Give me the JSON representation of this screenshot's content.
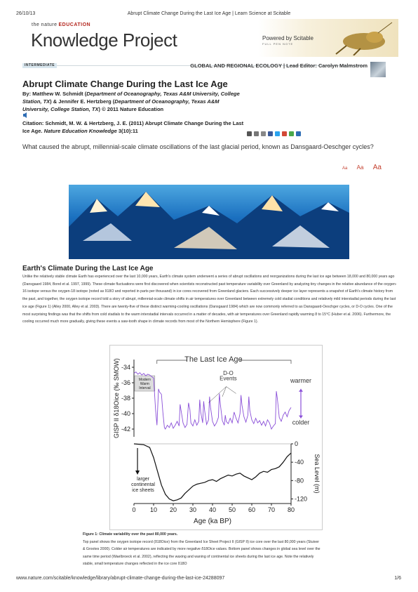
{
  "print_header": {
    "date": "26/10/13",
    "page_title": "Abrupt Climate Change During the Last Ice Age | Learn Science at Scitable"
  },
  "banner": {
    "brand_prefix": "the nature",
    "brand_suffix": "EDUCATION",
    "brand_title": "Knowledge Project",
    "powered_by": "Powered by Scitable",
    "powered_sub": "FULL PEN NOTE"
  },
  "meta": {
    "level": "INTERMEDIATE",
    "subject": "GLOBAL AND REGIONAL ECOLOGY",
    "lead_editor": "Lead Editor: Carolyn Malmstrom"
  },
  "article": {
    "title": "Abrupt Climate Change During the Last Ice Age",
    "authors_prefix": "By: Matthew W. Schmidt (",
    "author1_affil": "Department of Oceanography, Texas A&M University, College Station, TX",
    "authors_mid": ") & Jennifer E. Hertzberg (",
    "author2_affil": "Department of Oceanography, Texas A&M University, College Station, TX",
    "authors_suffix": ") © 2011 Nature Education",
    "citation_text": "Citation: Schmidt, M. W. & Hertzberg, J. E. (2011) Abrupt Climate Change During the Last Ice Age.",
    "citation_journal": "Nature Education Knowledge",
    "citation_vol": "3(10):11",
    "question": "What caused the abrupt, millennial-scale climate oscillations of the last glacial period, known as Dansgaard-Oeschger cycles?",
    "font_small": "Aa",
    "font_medium": "Aa",
    "font_large": "Aa"
  },
  "section": {
    "heading": "Earth's Climate During the Last Ice Age",
    "paragraph": "Unlike the relatively stable climate Earth has experienced over the last 10,000 years, Earth's climate system underwent a series of abrupt oscillations and reorganizations during the last ice age between 18,000 and 80,000 years ago (Dansgaard 1984, Bond et al. 1997, 1999). These climate fluctuations were first discovered when scientists reconstructed past temperature variability over Greenland by analyzing tiny changes in the relative abundance of the oxygen-16 isotope versus the oxygen-18 isotope (noted as δ18O and reported in parts per thousand) in ice cores recovered from Greenland glaciers. Each successively deeper ice layer represents a snapshot of Earth's climate history from the past, and together, the oxygen isotope record told a story of abrupt, millennial-scale climate shifts in air temperatures over Greenland between extremely cold stadial conditions and relatively mild interstadial periods during the last ice age (Figure 1) (Alley 2000, Alley et al. 2003). There are twenty-five of these distinct warming-cooling oscillations (Dansgaard 1984) which are now commonly referred to as Dansgaard-Oeschger cycles, or D-O cycles. One of the most surprising findings was that the shifts from cold stadials to the warm interstadial intervals occurred in a matter of decades, with air temperatures over Greenland rapidly warming 8 to 15°C (Huber et al. 2006). Furthermore, the cooling occurred much more gradually, giving these events a saw-tooth shape in climate records from most of the Northern Hemisphere (Figure 1)."
  },
  "figure": {
    "upper_ylabel": "GISP II δ18Oice (‰ SMOW)",
    "lower_ylabel": "Sea Level (m)",
    "xlabel": "Age (ka BP)",
    "label_last_ice_age": "The Last Ice Age",
    "label_do_line1": "D-O",
    "label_do_line2": "Events",
    "label_warmer": "warmer",
    "label_colder": "colder",
    "label_modern_line1": "Modern",
    "label_modern_line2": "Warm",
    "label_modern_line3": "Interval",
    "label_larger_line1": "larger",
    "label_larger_line2": "continental",
    "label_larger_line3": "ice sheets",
    "upper_ticks": [
      "-34",
      "-36",
      "-38",
      "-40",
      "-42"
    ],
    "lower_ticks": [
      "0",
      "-40",
      "-80",
      "-120"
    ],
    "x_ticks": [
      "0",
      "10",
      "20",
      "30",
      "40",
      "50",
      "60",
      "70",
      "80"
    ],
    "colors": {
      "isotope": "#8a4fd8",
      "sea_level": "#111111",
      "arrow": "#8a4fd8"
    }
  },
  "chart_data": {
    "type": "line",
    "xlabel": "Age (ka BP)",
    "xlim": [
      0,
      80
    ],
    "series": [
      {
        "name": "GISP II δ18O",
        "ylabel": "GISP II δ18Oice (‰ SMOW)",
        "ylim": [
          -43,
          -33
        ],
        "x": [
          0,
          1,
          2,
          3,
          4,
          5,
          6,
          7,
          8,
          9,
          10,
          11,
          11.7,
          12.5,
          13,
          14,
          14.7,
          15.5,
          16,
          17,
          18,
          19,
          20,
          21,
          22,
          23,
          23.5,
          24,
          25,
          26,
          27,
          27.8,
          28.5,
          29,
          30,
          31,
          32,
          33,
          33.5,
          34,
          35,
          35.5,
          36,
          37,
          38,
          38.5,
          39,
          40,
          41,
          42,
          43,
          43.5,
          44,
          45,
          46,
          46.5,
          47,
          48,
          49,
          50,
          51,
          52,
          53,
          54,
          54.5,
          55,
          56,
          57,
          58,
          58.5,
          59,
          60,
          61,
          62,
          63,
          64,
          65,
          66,
          67,
          68,
          69,
          70,
          71,
          72,
          72.5,
          73,
          74,
          75,
          76,
          77,
          78,
          79,
          80
        ],
        "y": [
          -34.8,
          -34.6,
          -34.9,
          -34.7,
          -35.0,
          -34.8,
          -35.1,
          -34.9,
          -35.0,
          -35.2,
          -35.4,
          -39.5,
          -41.5,
          -36.8,
          -37.2,
          -37.5,
          -39.8,
          -41.8,
          -42.0,
          -41.5,
          -41.8,
          -41.2,
          -41.9,
          -41.5,
          -41.0,
          -41.6,
          -38.8,
          -39.6,
          -41.2,
          -41.8,
          -41.4,
          -38.6,
          -39.5,
          -41.2,
          -41.6,
          -40.8,
          -41.5,
          -41.0,
          -38.2,
          -39.8,
          -41.2,
          -38.4,
          -39.6,
          -41.4,
          -40.8,
          -37.8,
          -39.2,
          -41.0,
          -41.6,
          -41.2,
          -40.5,
          -37.4,
          -38.8,
          -40.9,
          -41.5,
          -40.2,
          -41.0,
          -41.3,
          -40.6,
          -41.2,
          -39.8,
          -40.6,
          -41.2,
          -40.0,
          -37.6,
          -38.9,
          -40.4,
          -41.1,
          -40.2,
          -37.8,
          -39.6,
          -40.8,
          -41.3,
          -40.6,
          -41.2,
          -40.9,
          -41.5,
          -41.0,
          -41.6,
          -40.8,
          -41.2,
          -42.0,
          -41.6,
          -41.3,
          -37.1,
          -38.0,
          -40.5,
          -41.0,
          -40.2,
          -39.8,
          -40.4,
          -39.6,
          -39.2
        ]
      },
      {
        "name": "Sea level",
        "ylabel": "Sea Level (m)",
        "ylim": [
          -130,
          0
        ],
        "x": [
          0,
          5,
          8,
          10,
          12,
          14,
          16,
          18,
          20,
          22,
          24,
          26,
          28,
          30,
          32,
          34,
          36,
          38,
          40,
          42,
          44,
          46,
          48,
          50,
          52,
          54,
          56,
          58,
          60,
          62,
          64,
          66,
          68,
          70,
          72,
          74,
          76,
          78,
          80
        ],
        "y": [
          0,
          -2,
          -8,
          -30,
          -60,
          -90,
          -110,
          -120,
          -124,
          -122,
          -118,
          -108,
          -100,
          -92,
          -88,
          -86,
          -84,
          -80,
          -78,
          -82,
          -76,
          -72,
          -68,
          -70,
          -66,
          -64,
          -70,
          -74,
          -78,
          -72,
          -64,
          -60,
          -62,
          -56,
          -54,
          -50,
          -40,
          -28,
          -20
        ]
      }
    ]
  },
  "caption": {
    "label": "Figure 1: Climate variability over the past 80,000 years.",
    "text": "Top panel shows the oxygen isotope record (δ18Oice) from the Greenland Ice Sheet Project II (GISP II) ice core over the last 80,000 years (Stuiver & Grootes 2000). Colder air temperatures are indicated by more negative δ18Oice values. Bottom panel shows changes in global sea level over the same time period (Waelbroeck et al. 2002), reflecting the waxing and waning of continental ice sheets during the last ice age. Note the relatively stable, small temperature changes reflected in the ice core δ18O"
  },
  "footer": {
    "url": "www.nature.com/scitable/knowledge/library/abrupt-climate-change-during-the-last-ice-24288097",
    "page": "1/6"
  }
}
